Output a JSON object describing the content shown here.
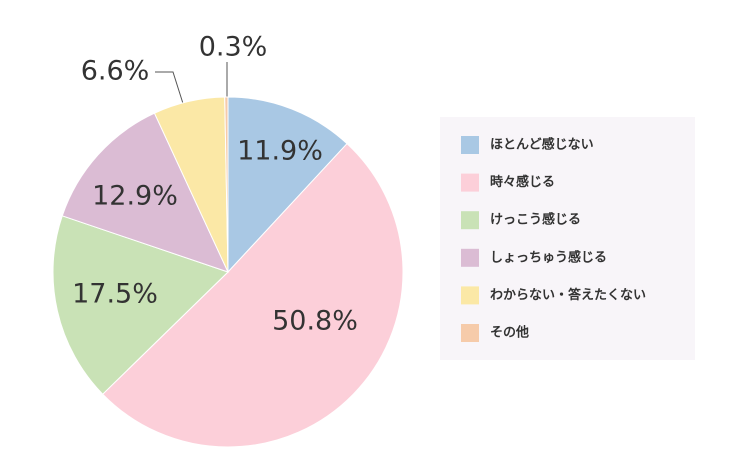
{
  "chart_data": {
    "type": "pie",
    "categories": [
      "ほとんど感じない",
      "時々感じる",
      "けっこう感じる",
      "しょっちゅう感じる",
      "わからない・答えたくない",
      "その他"
    ],
    "values": [
      11.9,
      50.8,
      17.5,
      12.9,
      6.6,
      0.3
    ],
    "value_labels": [
      "11.9%",
      "50.8%",
      "17.5%",
      "12.9%",
      "6.6%",
      "0.3%"
    ],
    "colors": [
      "#a9c8e4",
      "#fccfd9",
      "#c9e2b6",
      "#dbbcd4",
      "#fbe8a6",
      "#f6cbaa"
    ]
  }
}
